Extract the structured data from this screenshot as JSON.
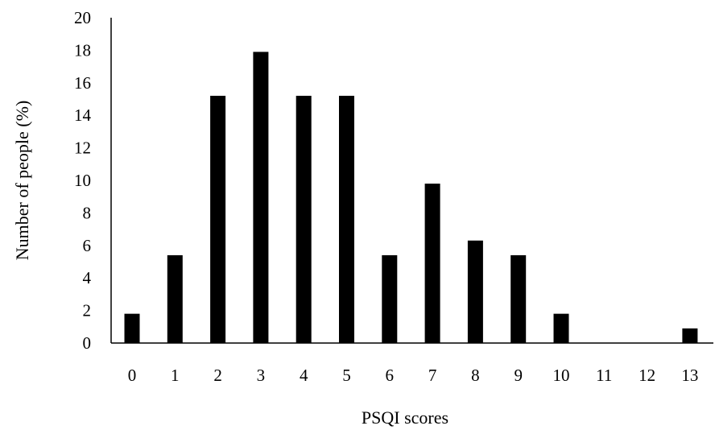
{
  "chart_data": {
    "type": "bar",
    "title": "",
    "xlabel": "PSQI scores",
    "ylabel": "Number of people (%)",
    "categories": [
      "0",
      "1",
      "2",
      "3",
      "4",
      "5",
      "6",
      "7",
      "8",
      "9",
      "10",
      "11",
      "12",
      "13"
    ],
    "values": [
      1.8,
      5.4,
      15.2,
      17.9,
      15.2,
      15.2,
      5.4,
      9.8,
      6.3,
      5.4,
      1.8,
      0,
      0,
      0.9
    ],
    "ylim": [
      0,
      20
    ],
    "yticks": [
      0,
      2,
      4,
      6,
      8,
      10,
      12,
      14,
      16,
      18,
      20
    ],
    "grid": false,
    "legend": "none",
    "bar_color": "#000000",
    "axis_color": "#000000"
  }
}
